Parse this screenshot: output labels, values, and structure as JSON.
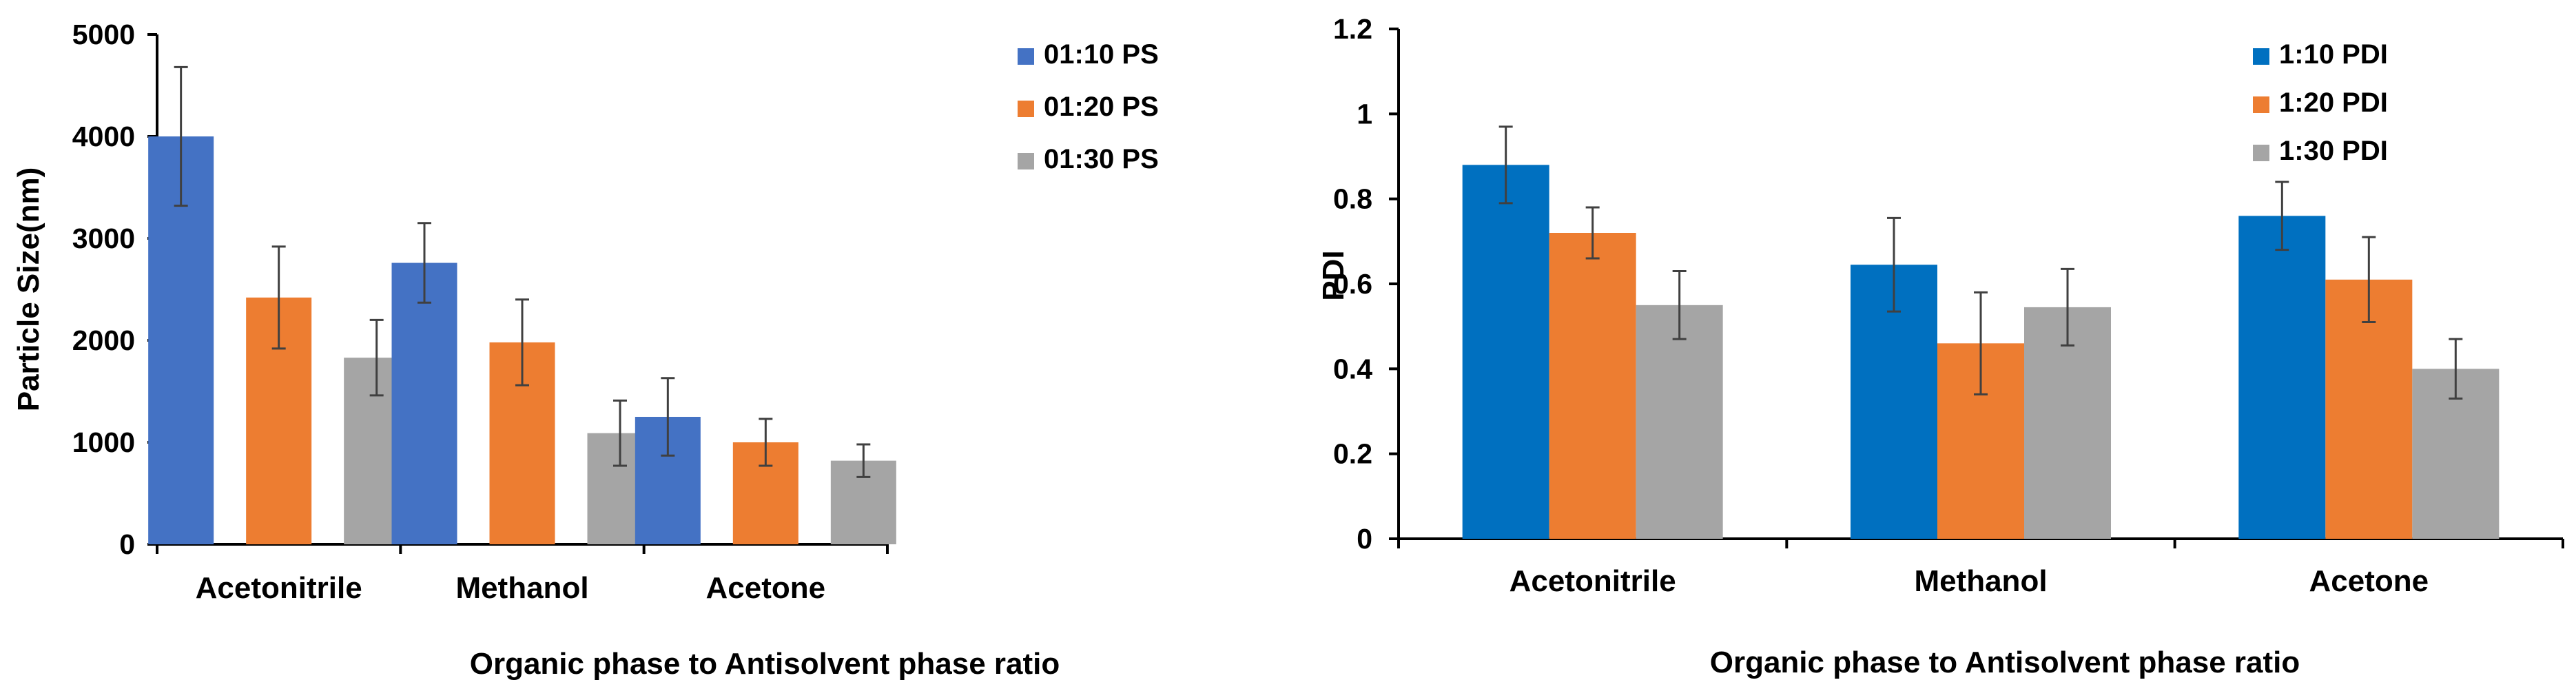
{
  "chart_data": [
    {
      "type": "bar",
      "title": "",
      "xlabel": "Organic phase to Antisolvent phase ratio",
      "ylabel": "Particle Size(nm)",
      "categories": [
        "Acetonitrile",
        "Methanol",
        "Acetone"
      ],
      "ylim": [
        0,
        5000
      ],
      "yticks": [
        0,
        1000,
        2000,
        3000,
        4000,
        5000
      ],
      "ytick_labels": [
        "0",
        "1000",
        "2000",
        "3000",
        "4000",
        "5000"
      ],
      "grid": false,
      "legend_position": "top-right",
      "series": [
        {
          "name": "01:10 PS",
          "color": "#4472C4",
          "values": [
            4000,
            2760,
            1250
          ],
          "errors": [
            680,
            390,
            380
          ]
        },
        {
          "name": "01:20 PS",
          "color": "#ED7D31",
          "values": [
            2420,
            1980,
            1000
          ],
          "errors": [
            500,
            420,
            230
          ]
        },
        {
          "name": "01:30 PS",
          "color": "#A5A5A5",
          "values": [
            1830,
            1090,
            820
          ],
          "errors": [
            370,
            320,
            160
          ]
        }
      ]
    },
    {
      "type": "bar",
      "title": "",
      "xlabel": "Organic phase to Antisolvent phase ratio",
      "ylabel": "PDI",
      "categories": [
        "Acetonitrile",
        "Methanol",
        "Acetone"
      ],
      "ylim": [
        0,
        1.2
      ],
      "yticks": [
        0,
        0.2,
        0.4,
        0.6,
        0.8,
        1,
        1.2
      ],
      "ytick_labels": [
        "0",
        "0.2",
        "0.4",
        "0.6",
        "0.8",
        "1",
        "1.2"
      ],
      "grid": false,
      "legend_position": "top-right",
      "series": [
        {
          "name": "1:10 PDI",
          "color": "#0070C0",
          "values": [
            0.88,
            0.645,
            0.76
          ],
          "errors": [
            0.09,
            0.11,
            0.08
          ]
        },
        {
          "name": "1:20 PDI",
          "color": "#ED7D31",
          "values": [
            0.72,
            0.46,
            0.61
          ],
          "errors": [
            0.06,
            0.12,
            0.1
          ]
        },
        {
          "name": "1:30 PDI",
          "color": "#A5A5A5",
          "values": [
            0.55,
            0.545,
            0.4
          ],
          "errors": [
            0.08,
            0.09,
            0.07
          ]
        }
      ]
    }
  ]
}
